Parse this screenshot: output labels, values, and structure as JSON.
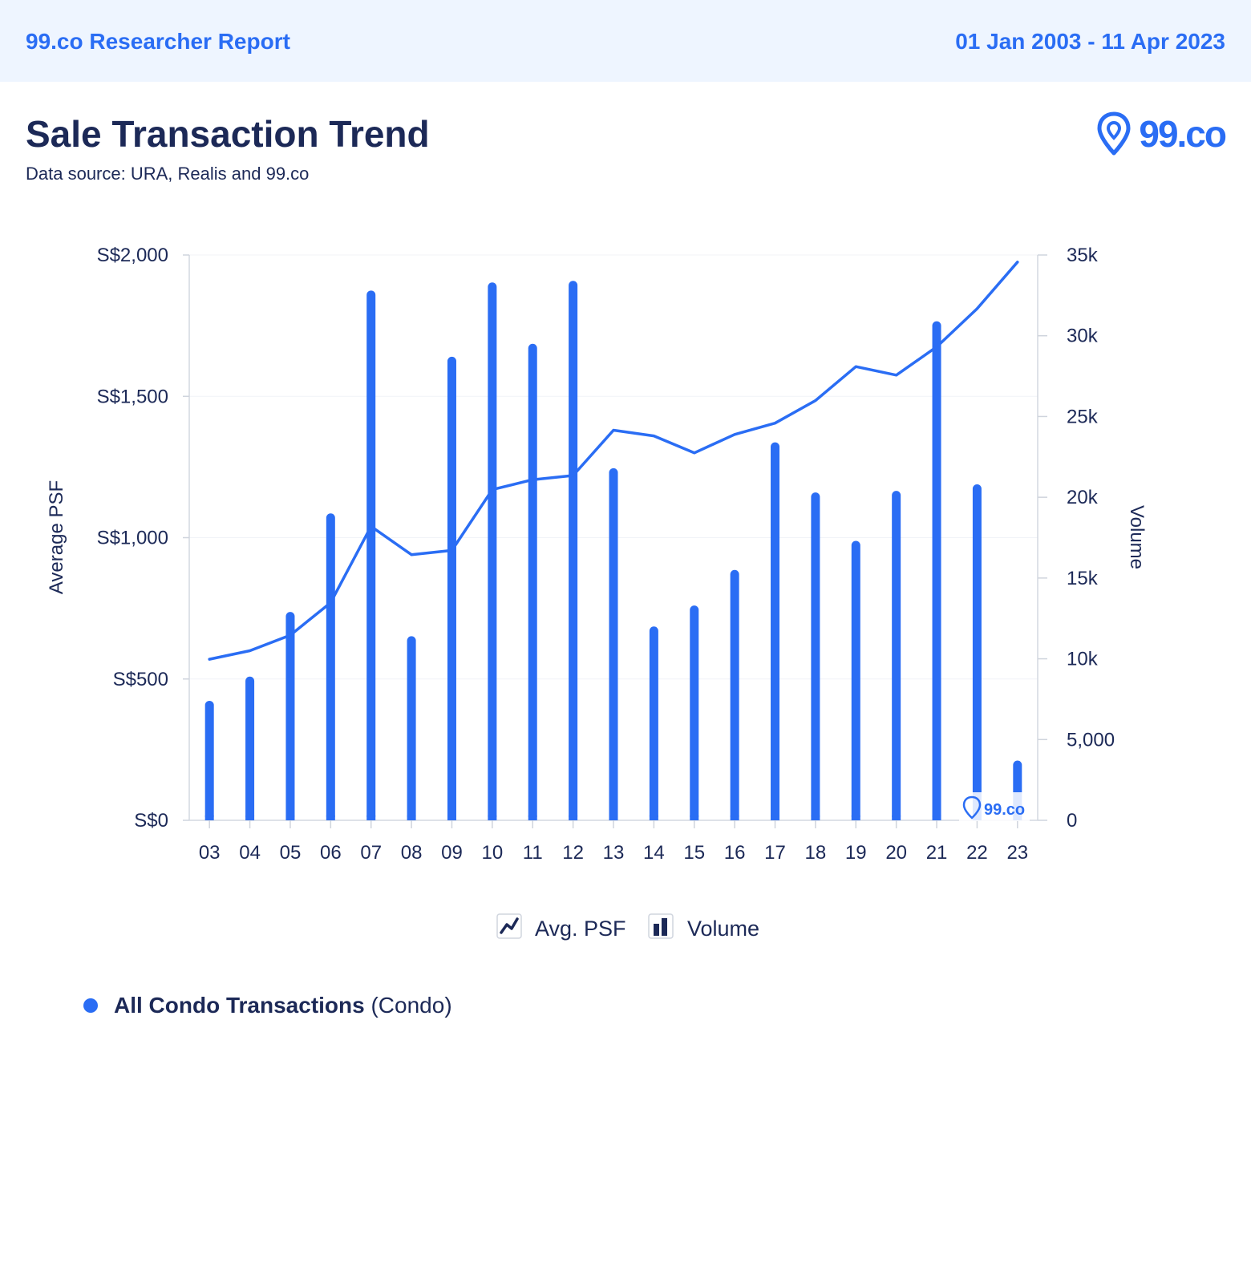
{
  "header": {
    "report_name": "99.co Researcher Report",
    "date_range": "01 Jan 2003 - 11 Apr 2023"
  },
  "title": "Sale Transaction Trend",
  "subtitle": "Data source: URA, Realis and 99.co",
  "brand": {
    "text": "99.co",
    "color": "#2a6df4"
  },
  "watermark": {
    "text": "99.co"
  },
  "series_legend": {
    "name": "All Condo Transactions",
    "suffix": "(Condo)",
    "color": "#2a6df4"
  },
  "chart_data": {
    "type": "bar",
    "categories": [
      "03",
      "04",
      "05",
      "06",
      "07",
      "08",
      "09",
      "10",
      "11",
      "12",
      "13",
      "14",
      "15",
      "16",
      "17",
      "18",
      "19",
      "20",
      "21",
      "22",
      "23"
    ],
    "series": [
      {
        "name": "Volume",
        "type": "bar",
        "axis": "right",
        "values": [
          7400,
          8900,
          12900,
          19000,
          32800,
          11400,
          28700,
          33300,
          29500,
          33400,
          21800,
          12000,
          13300,
          15500,
          23400,
          20300,
          17300,
          20400,
          30900,
          20800,
          3700
        ]
      },
      {
        "name": "Avg. PSF",
        "type": "line",
        "axis": "left",
        "values": [
          570,
          600,
          655,
          770,
          1040,
          940,
          955,
          1170,
          1205,
          1220,
          1380,
          1360,
          1300,
          1365,
          1405,
          1485,
          1605,
          1575,
          1675,
          1810,
          1975
        ]
      }
    ],
    "yaxis_left": {
      "label": "Average PSF",
      "range": [
        0,
        2000
      ],
      "ticks": [
        0,
        500,
        1000,
        1500,
        2000
      ],
      "tick_labels": [
        "S$0",
        "S$500",
        "S$1,000",
        "S$1,500",
        "S$2,000"
      ]
    },
    "yaxis_right": {
      "label": "Volume",
      "range": [
        0,
        35000
      ],
      "ticks": [
        0,
        5000,
        10000,
        15000,
        20000,
        25000,
        30000,
        35000
      ],
      "tick_labels": [
        "0",
        "5,000",
        "10k",
        "15k",
        "20k",
        "25k",
        "30k",
        "35k"
      ]
    },
    "legend": [
      "Avg. PSF",
      "Volume"
    ],
    "legend_position": "bottom-center",
    "colors": {
      "bar": "#2a6df4",
      "line": "#2a6df4",
      "axis_text": "#1c2957"
    }
  }
}
